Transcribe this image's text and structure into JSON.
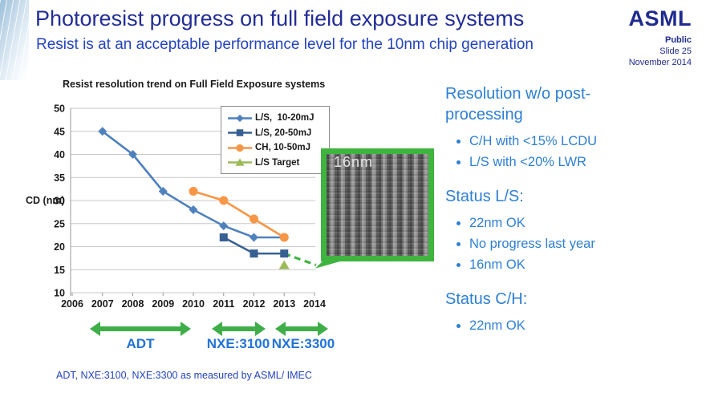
{
  "header": {
    "title": "Photoresist progress on full field exposure systems",
    "subtitle": "Resist is at an acceptable performance level for the 10nm chip generation",
    "logo": "ASML",
    "classification": "Public",
    "slide_number": "Slide 25",
    "date": "November 2014"
  },
  "chart_data": {
    "type": "line",
    "title": "Resist resolution trend on Full Field Exposure systems",
    "xlabel": "",
    "ylabel": "CD (nm)",
    "xlim": [
      2006,
      2014
    ],
    "ylim": [
      10,
      50
    ],
    "ytick_step": 5,
    "grid": "horizontal",
    "legend_position": "top-right",
    "series": [
      {
        "name": "L/S,  10-20mJ",
        "color": "#4f81bd",
        "marker": "diamond",
        "x": [
          2007,
          2008,
          2009,
          2010,
          2011,
          2012,
          2013
        ],
        "y": [
          45,
          40,
          32,
          28,
          24.5,
          22,
          22
        ]
      },
      {
        "name": "L/S, 20-50mJ",
        "color": "#376092",
        "marker": "square",
        "x": [
          2011,
          2012,
          2013
        ],
        "y": [
          22,
          18.5,
          18.5
        ]
      },
      {
        "name": "CH, 10-50mJ",
        "color": "#f79646",
        "marker": "circle",
        "x": [
          2010,
          2011,
          2012,
          2013
        ],
        "y": [
          32,
          30,
          26,
          22
        ]
      },
      {
        "name": "L/S Target",
        "color": "#9bbb59",
        "marker": "triangle",
        "line": false,
        "x": [
          2013
        ],
        "y": [
          16
        ]
      }
    ],
    "extrapolation": {
      "color": "#3fb43f",
      "style": "dashed",
      "x": [
        2013,
        2014.05
      ],
      "y": [
        18.5,
        16
      ]
    }
  },
  "sem_callout": {
    "label": "16nm",
    "frame_color": "#3fb43f"
  },
  "timeline": {
    "arrow_color": "#3fae49",
    "arrows": [
      {
        "label": "ADT"
      },
      {
        "label": "NXE:3100"
      },
      {
        "label": "NXE:3300"
      }
    ]
  },
  "right_panel": {
    "sections": [
      {
        "heading": "Resolution w/o post-processing",
        "bullets": [
          "C/H with <15% LCDU",
          "L/S with <20% LWR"
        ]
      },
      {
        "heading": "Status L/S:",
        "bullets": [
          "22nm OK",
          "No progress last year",
          "16nm OK"
        ]
      },
      {
        "heading": "Status C/H:",
        "bullets": [
          "22nm OK"
        ]
      }
    ]
  },
  "footnote": "ADT, NXE:3100, NXE:3300 as measured by ASML/ IMEC"
}
